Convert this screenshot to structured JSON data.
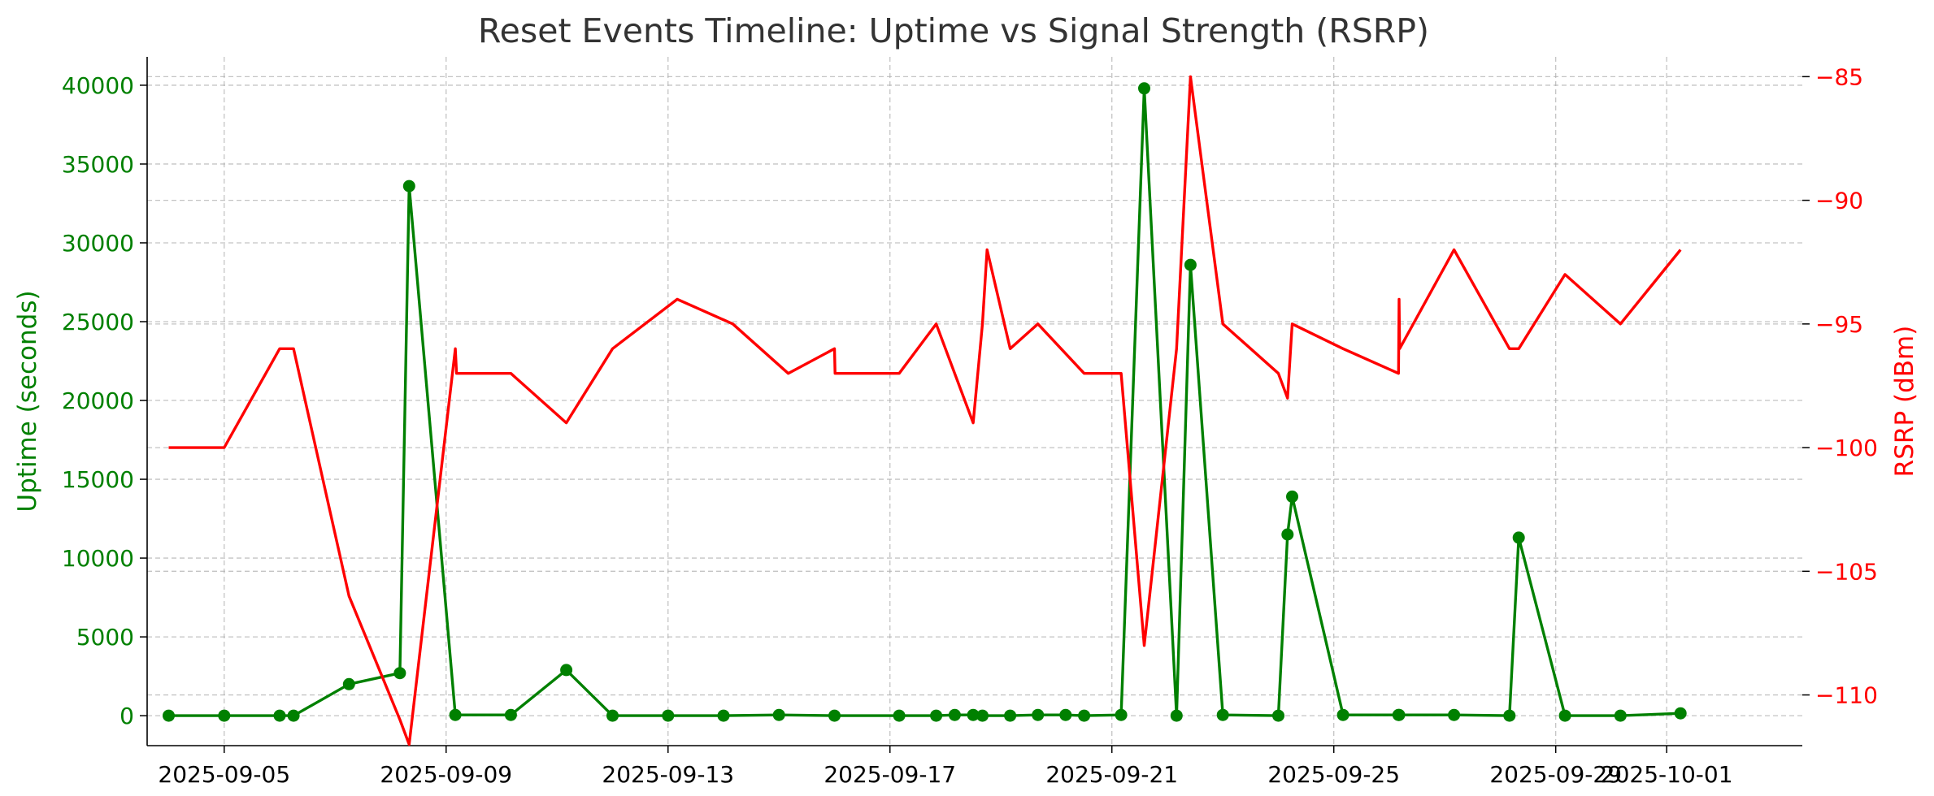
{
  "chart_data": {
    "type": "line",
    "title": "Reset Events Timeline: Uptime vs Signal Strength (RSRP)",
    "x_axis": {
      "type": "date",
      "ticks": [
        "2025-09-05",
        "2025-09-09",
        "2025-09-13",
        "2025-09-17",
        "2025-09-21",
        "2025-09-25",
        "2025-09-29",
        "2025-10-01"
      ],
      "range": [
        "2025-09-03T14:40",
        "2025-10-03T10:40"
      ]
    },
    "left_axis": {
      "label": "Uptime (seconds)",
      "color": "#008000",
      "ticks": [
        0,
        5000,
        10000,
        15000,
        20000,
        25000,
        30000,
        35000,
        40000
      ],
      "ylim": [
        -1900,
        41800
      ]
    },
    "right_axis": {
      "label": "RSRP (dBm)",
      "color": "#ff0000",
      "ticks": [
        -85,
        -90,
        -95,
        -100,
        -105,
        -110
      ],
      "ylim": [
        -112.05,
        -84.2
      ]
    },
    "grid": true,
    "series": [
      {
        "axis": "left",
        "color": "#008000",
        "marker": "circle",
        "points": [
          [
            "2025-09-04T00:00",
            0
          ],
          [
            "2025-09-05T00:00",
            0
          ],
          [
            "2025-09-06T00:00",
            0
          ],
          [
            "2025-09-06T06:00",
            0
          ],
          [
            "2025-09-07T06:00",
            2000
          ],
          [
            "2025-09-08T04:00",
            2700
          ],
          [
            "2025-09-08T08:00",
            33600
          ],
          [
            "2025-09-09T04:00",
            50
          ],
          [
            "2025-09-10T04:00",
            50
          ],
          [
            "2025-09-11T04:00",
            2900
          ],
          [
            "2025-09-12T00:00",
            0
          ],
          [
            "2025-09-13T00:00",
            0
          ],
          [
            "2025-09-14T00:00",
            0
          ],
          [
            "2025-09-15T00:00",
            50
          ],
          [
            "2025-09-16T00:00",
            0
          ],
          [
            "2025-09-17T04:00",
            0
          ],
          [
            "2025-09-17T20:00",
            0
          ],
          [
            "2025-09-18T04:00",
            50
          ],
          [
            "2025-09-18T12:00",
            50
          ],
          [
            "2025-09-18T16:00",
            0
          ],
          [
            "2025-09-19T04:00",
            0
          ],
          [
            "2025-09-19T16:00",
            50
          ],
          [
            "2025-09-20T04:00",
            50
          ],
          [
            "2025-09-20T12:00",
            0
          ],
          [
            "2025-09-21T04:00",
            50
          ],
          [
            "2025-09-21T14:00",
            39800
          ],
          [
            "2025-09-22T04:00",
            0
          ],
          [
            "2025-09-22T10:00",
            28600
          ],
          [
            "2025-09-23T00:00",
            50
          ],
          [
            "2025-09-24T00:00",
            0
          ],
          [
            "2025-09-24T04:00",
            11500
          ],
          [
            "2025-09-24T06:00",
            13900
          ],
          [
            "2025-09-25T04:00",
            50
          ],
          [
            "2025-09-26T04:00",
            50
          ],
          [
            "2025-09-26T04:15",
            50
          ],
          [
            "2025-09-27T04:00",
            50
          ],
          [
            "2025-09-28T04:00",
            0
          ],
          [
            "2025-09-28T08:00",
            11300
          ],
          [
            "2025-09-29T04:00",
            0
          ],
          [
            "2025-09-30T04:00",
            0
          ],
          [
            "2025-10-01T06:00",
            150
          ]
        ]
      },
      {
        "axis": "right",
        "color": "#ff0000",
        "marker": "none",
        "points": [
          [
            "2025-09-04T00:00",
            -100
          ],
          [
            "2025-09-05T00:00",
            -100
          ],
          [
            "2025-09-06T00:00",
            -96
          ],
          [
            "2025-09-06T06:00",
            -96
          ],
          [
            "2025-09-07T06:00",
            -106
          ],
          [
            "2025-09-08T04:00",
            -111
          ],
          [
            "2025-09-08T08:00",
            -112
          ],
          [
            "2025-09-09T04:00",
            -96
          ],
          [
            "2025-09-09T04:30",
            -97
          ],
          [
            "2025-09-10T04:00",
            -97
          ],
          [
            "2025-09-11T04:00",
            -99
          ],
          [
            "2025-09-12T00:00",
            -96
          ],
          [
            "2025-09-13T04:00",
            -94
          ],
          [
            "2025-09-14T04:00",
            -95
          ],
          [
            "2025-09-15T04:00",
            -97
          ],
          [
            "2025-09-16T00:00",
            -96
          ],
          [
            "2025-09-16T00:15",
            -97
          ],
          [
            "2025-09-17T04:00",
            -97
          ],
          [
            "2025-09-17T20:00",
            -95
          ],
          [
            "2025-09-18T12:00",
            -99
          ],
          [
            "2025-09-18T16:00",
            -95
          ],
          [
            "2025-09-18T18:00",
            -92
          ],
          [
            "2025-09-19T04:00",
            -96
          ],
          [
            "2025-09-19T16:00",
            -95
          ],
          [
            "2025-09-20T12:00",
            -97
          ],
          [
            "2025-09-21T04:00",
            -97
          ],
          [
            "2025-09-21T14:00",
            -108
          ],
          [
            "2025-09-22T04:00",
            -96
          ],
          [
            "2025-09-22T10:00",
            -85
          ],
          [
            "2025-09-23T00:00",
            -95
          ],
          [
            "2025-09-24T00:00",
            -97
          ],
          [
            "2025-09-24T04:00",
            -98
          ],
          [
            "2025-09-24T06:00",
            -95
          ],
          [
            "2025-09-25T04:00",
            -96
          ],
          [
            "2025-09-26T04:00",
            -97
          ],
          [
            "2025-09-26T04:15",
            -94
          ],
          [
            "2025-09-26T04:30",
            -96
          ],
          [
            "2025-09-27T04:00",
            -92
          ],
          [
            "2025-09-28T04:00",
            -96
          ],
          [
            "2025-09-28T08:00",
            -96
          ],
          [
            "2025-09-29T04:00",
            -93
          ],
          [
            "2025-09-30T04:00",
            -95
          ],
          [
            "2025-10-01T06:00",
            -92
          ]
        ]
      }
    ]
  }
}
